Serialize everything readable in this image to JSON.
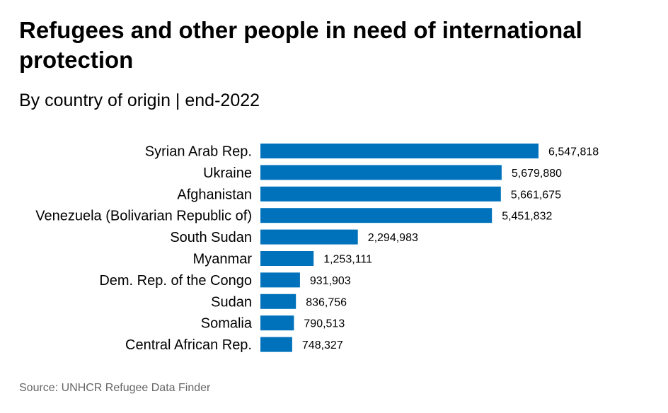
{
  "chart_data": {
    "type": "bar",
    "orientation": "horizontal",
    "title": "Refugees and other people in need of international protection",
    "subtitle": "By country of origin | end-2022",
    "source": "Source: UNHCR Refugee Data Finder",
    "categories": [
      "Syrian Arab Rep.",
      "Ukraine",
      "Afghanistan",
      "Venezuela (Bolivarian Republic of)",
      "South Sudan",
      "Myanmar",
      "Dem. Rep. of the Congo",
      "Sudan",
      "Somalia",
      "Central African Rep."
    ],
    "values": [
      6547818,
      5679880,
      5661675,
      5451832,
      2294983,
      1253111,
      931903,
      836756,
      790513,
      748327
    ],
    "value_labels": [
      "6,547,818",
      "5,679,880",
      "5,661,675",
      "5,451,832",
      "2,294,983",
      "1,253,111",
      "931,903",
      "836,756",
      "790,513",
      "748,327"
    ],
    "bar_color": "#0072BC",
    "xlim": [
      0,
      6547818
    ],
    "grid": false,
    "legend": "none"
  }
}
